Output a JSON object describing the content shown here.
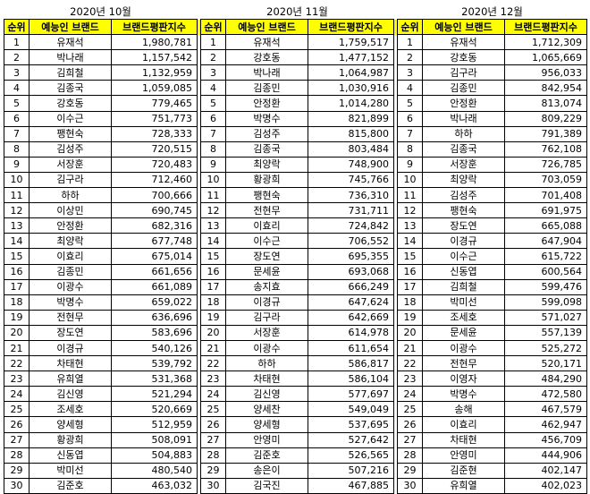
{
  "months": [
    "2020년 10월",
    "2020년 11월",
    "2020년 12월"
  ],
  "headers": {
    "rank": "순위",
    "name": "예능인 브랜드",
    "index": "브랜드평판지수"
  },
  "rows": [
    [
      [
        "1",
        "유재석",
        "1,980,781"
      ],
      [
        "1",
        "유재석",
        "1,759,517"
      ],
      [
        "1",
        "유재석",
        "1,712,309"
      ]
    ],
    [
      [
        "2",
        "박나래",
        "1,157,542"
      ],
      [
        "2",
        "강호동",
        "1,477,152"
      ],
      [
        "2",
        "강호동",
        "1,065,669"
      ]
    ],
    [
      [
        "3",
        "김희철",
        "1,132,959"
      ],
      [
        "3",
        "박나래",
        "1,064,987"
      ],
      [
        "3",
        "김구라",
        "956,033"
      ]
    ],
    [
      [
        "4",
        "김종국",
        "1,059,085"
      ],
      [
        "4",
        "김종민",
        "1,030,916"
      ],
      [
        "4",
        "김종민",
        "842,954"
      ]
    ],
    [
      [
        "5",
        "강호동",
        "779,465"
      ],
      [
        "5",
        "안정환",
        "1,014,280"
      ],
      [
        "5",
        "안정환",
        "813,074"
      ]
    ],
    [
      [
        "6",
        "이수근",
        "751,773"
      ],
      [
        "6",
        "박명수",
        "821,899"
      ],
      [
        "6",
        "박나래",
        "809,229"
      ]
    ],
    [
      [
        "7",
        "팽현숙",
        "728,333"
      ],
      [
        "7",
        "김성주",
        "815,800"
      ],
      [
        "7",
        "하하",
        "791,389"
      ]
    ],
    [
      [
        "8",
        "김성주",
        "720,515"
      ],
      [
        "8",
        "김종국",
        "803,484"
      ],
      [
        "8",
        "김종국",
        "762,108"
      ]
    ],
    [
      [
        "9",
        "서장훈",
        "720,483"
      ],
      [
        "9",
        "최양락",
        "748,900"
      ],
      [
        "9",
        "서장훈",
        "726,785"
      ]
    ],
    [
      [
        "10",
        "김구라",
        "712,460"
      ],
      [
        "10",
        "황광희",
        "745,766"
      ],
      [
        "10",
        "최양락",
        "703,059"
      ]
    ],
    [
      [
        "11",
        "하하",
        "700,666"
      ],
      [
        "11",
        "팽현숙",
        "736,310"
      ],
      [
        "11",
        "김성주",
        "701,408"
      ]
    ],
    [
      [
        "12",
        "이상민",
        "690,745"
      ],
      [
        "12",
        "전현무",
        "731,711"
      ],
      [
        "12",
        "팽현숙",
        "691,975"
      ]
    ],
    [
      [
        "13",
        "안정환",
        "682,316"
      ],
      [
        "13",
        "이효리",
        "724,842"
      ],
      [
        "13",
        "장도연",
        "665,088"
      ]
    ],
    [
      [
        "14",
        "최양락",
        "677,748"
      ],
      [
        "14",
        "이수근",
        "706,552"
      ],
      [
        "14",
        "이경규",
        "647,904"
      ]
    ],
    [
      [
        "15",
        "이효리",
        "675,014"
      ],
      [
        "15",
        "장도연",
        "695,355"
      ],
      [
        "15",
        "이수근",
        "615,722"
      ]
    ],
    [
      [
        "16",
        "김종민",
        "661,656"
      ],
      [
        "16",
        "문세윤",
        "693,068"
      ],
      [
        "16",
        "신동엽",
        "600,564"
      ]
    ],
    [
      [
        "17",
        "이광수",
        "661,089"
      ],
      [
        "17",
        "송지효",
        "666,249"
      ],
      [
        "17",
        "김희철",
        "599,476"
      ]
    ],
    [
      [
        "18",
        "박명수",
        "659,022"
      ],
      [
        "18",
        "이경규",
        "647,624"
      ],
      [
        "18",
        "박미선",
        "599,098"
      ]
    ],
    [
      [
        "19",
        "전현무",
        "636,696"
      ],
      [
        "19",
        "김구라",
        "642,669"
      ],
      [
        "19",
        "조세호",
        "571,027"
      ]
    ],
    [
      [
        "20",
        "장도연",
        "583,696"
      ],
      [
        "20",
        "서장훈",
        "614,978"
      ],
      [
        "20",
        "문세윤",
        "557,139"
      ]
    ],
    [
      [
        "21",
        "이경규",
        "540,126"
      ],
      [
        "21",
        "이광수",
        "611,654"
      ],
      [
        "21",
        "이광수",
        "525,272"
      ]
    ],
    [
      [
        "22",
        "차태현",
        "539,792"
      ],
      [
        "22",
        "하하",
        "586,817"
      ],
      [
        "22",
        "전현무",
        "520,171"
      ]
    ],
    [
      [
        "23",
        "유희열",
        "531,368"
      ],
      [
        "23",
        "차태현",
        "586,104"
      ],
      [
        "23",
        "이영자",
        "484,290"
      ]
    ],
    [
      [
        "24",
        "김신영",
        "521,294"
      ],
      [
        "24",
        "김신영",
        "577,697"
      ],
      [
        "24",
        "박명수",
        "472,580"
      ]
    ],
    [
      [
        "25",
        "조세호",
        "520,669"
      ],
      [
        "25",
        "양세찬",
        "549,049"
      ],
      [
        "25",
        "송해",
        "467,579"
      ]
    ],
    [
      [
        "26",
        "양세형",
        "512,959"
      ],
      [
        "26",
        "양세형",
        "537,695"
      ],
      [
        "26",
        "이효리",
        "462,947"
      ]
    ],
    [
      [
        "27",
        "황광희",
        "508,091"
      ],
      [
        "27",
        "안영미",
        "527,642"
      ],
      [
        "27",
        "차태현",
        "456,709"
      ]
    ],
    [
      [
        "28",
        "신동엽",
        "504,883"
      ],
      [
        "28",
        "김준호",
        "526,565"
      ],
      [
        "28",
        "안영미",
        "444,906"
      ]
    ],
    [
      [
        "29",
        "박미선",
        "480,540"
      ],
      [
        "29",
        "송은이",
        "507,216"
      ],
      [
        "29",
        "김준현",
        "402,147"
      ]
    ],
    [
      [
        "30",
        "김준호",
        "463,032"
      ],
      [
        "30",
        "김국진",
        "467,885"
      ],
      [
        "30",
        "유희열",
        "402,023"
      ]
    ]
  ]
}
